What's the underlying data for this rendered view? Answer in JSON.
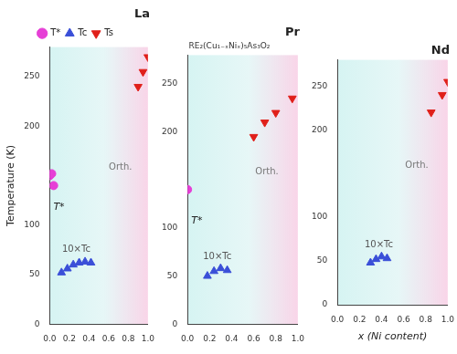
{
  "chart_data": [
    {
      "type": "scatter",
      "title": "La",
      "y_label": "Temperature (K)",
      "xlim": [
        0,
        1
      ],
      "xticks": [
        {
          "value": 0,
          "label": "0.0"
        },
        {
          "value": 0.2,
          "label": "0.2"
        },
        {
          "value": 0.4,
          "label": "0.4"
        },
        {
          "value": 0.6,
          "label": "0.6"
        },
        {
          "value": 0.8,
          "label": "0.8"
        },
        {
          "value": 1,
          "label": "1.0"
        }
      ],
      "ylim": [
        0,
        280
      ],
      "yticks": [
        0,
        50,
        100,
        200,
        250
      ],
      "grid": false,
      "legend": "top",
      "annotations": {
        "tc": "10×Tc",
        "t_star": "T*",
        "region": "Orth."
      },
      "series": [
        {
          "name": "T*",
          "color": "#e63fd6",
          "marker": "circle",
          "x": [
            0,
            0.02,
            0.04
          ],
          "values": [
            150,
            152,
            140
          ]
        },
        {
          "name": "Tc",
          "color": "#3a4fd8",
          "marker": "triangle",
          "x": [
            0.12,
            0.18,
            0.24,
            0.3,
            0.36,
            0.42
          ],
          "values": [
            52,
            56,
            60,
            62,
            63,
            62
          ]
        },
        {
          "name": "Ts",
          "color": "#e0201a",
          "marker": "triangle_down",
          "x": [
            0.9,
            0.95,
            1.0
          ],
          "values": [
            240,
            255,
            270
          ]
        }
      ]
    },
    {
      "type": "scatter",
      "title": "Pr",
      "subtitle": "RE₂(Cu₁₋ₓNiₓ)₅As₃O₂",
      "xlim": [
        0,
        1
      ],
      "xticks": [
        {
          "value": 0,
          "label": "0.0"
        },
        {
          "value": 0.2,
          "label": "0.2"
        },
        {
          "value": 0.4,
          "label": "0.4"
        },
        {
          "value": 0.6,
          "label": "0.6"
        },
        {
          "value": 0.8,
          "label": "0.8"
        },
        {
          "value": 1,
          "label": "1.0"
        }
      ],
      "ylim": [
        0,
        280
      ],
      "yticks": [
        0,
        50,
        100,
        200,
        250
      ],
      "grid": false,
      "annotations": {
        "tc": "10×Tc",
        "t_star": "T*",
        "region": "Orth."
      },
      "series": [
        {
          "name": "T*",
          "color": "#e63fd6",
          "marker": "circle",
          "x": [
            0
          ],
          "values": [
            140
          ]
        },
        {
          "name": "Tc",
          "color": "#3a4fd8",
          "marker": "triangle",
          "x": [
            0.18,
            0.24,
            0.3,
            0.36
          ],
          "values": [
            50,
            55,
            58,
            56
          ]
        },
        {
          "name": "Ts",
          "color": "#e0201a",
          "marker": "triangle_down",
          "x": [
            0.6,
            0.7,
            0.8,
            0.95
          ],
          "values": [
            195,
            210,
            220,
            235
          ]
        }
      ]
    },
    {
      "type": "scatter",
      "title": "Nd",
      "x_label": "x (Ni content)",
      "xlim": [
        0,
        1
      ],
      "xticks": [
        {
          "value": 0,
          "label": "0.0"
        },
        {
          "value": 0.2,
          "label": "0.2"
        },
        {
          "value": 0.4,
          "label": "0.4"
        },
        {
          "value": 0.6,
          "label": "0.6"
        },
        {
          "value": 0.8,
          "label": "0.8"
        },
        {
          "value": 1,
          "label": "1.0"
        }
      ],
      "ylim": [
        0,
        280
      ],
      "yticks": [
        0,
        50,
        100,
        200,
        250
      ],
      "grid": false,
      "annotations": {
        "tc": "10×Tc",
        "region": "Orth."
      },
      "series": [
        {
          "name": "Tc",
          "color": "#3a4fd8",
          "marker": "triangle",
          "x": [
            0.3,
            0.35,
            0.4,
            0.45
          ],
          "values": [
            48,
            52,
            55,
            53
          ]
        },
        {
          "name": "Ts",
          "color": "#e0201a",
          "marker": "triangle_down",
          "x": [
            0.85,
            0.95,
            1.0
          ],
          "values": [
            220,
            240,
            255
          ]
        }
      ]
    }
  ]
}
